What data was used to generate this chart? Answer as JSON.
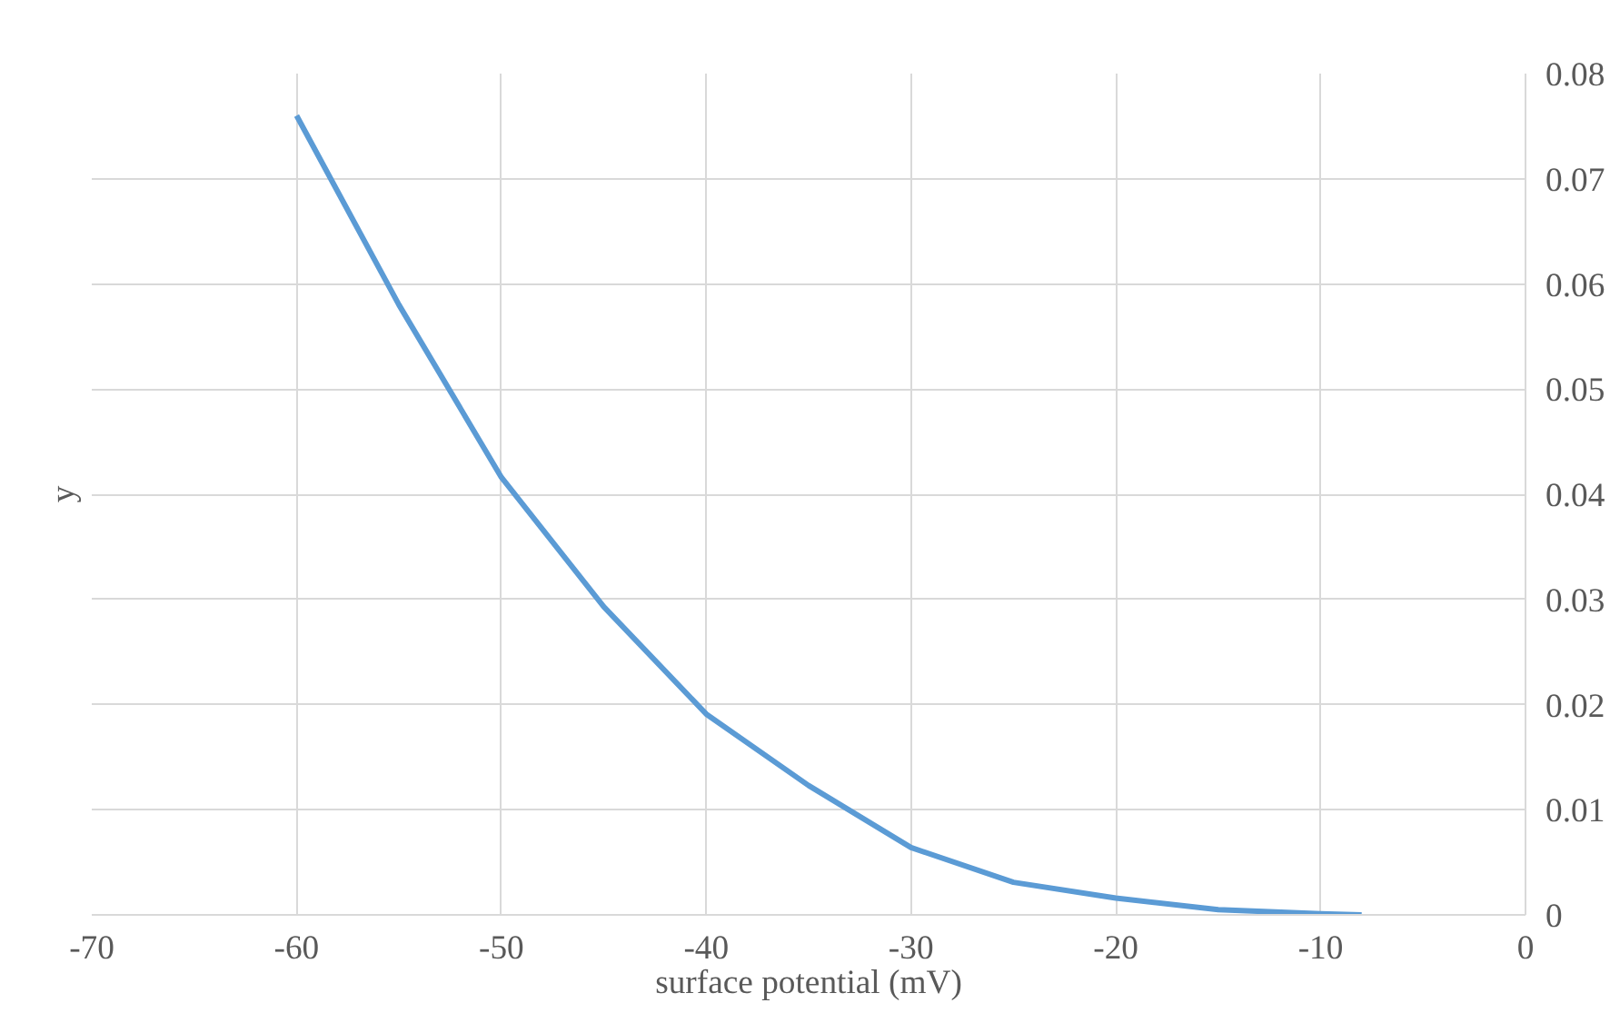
{
  "chart_data": {
    "type": "line",
    "xlabel": "surface potential (mV)",
    "ylabel": "y",
    "x": [
      -60,
      -55,
      -50,
      -45,
      -40,
      -35,
      -30,
      -25,
      -20,
      -15,
      -10,
      -8
    ],
    "series": [
      {
        "color": "#5b9bd5",
        "values": [
          0.076,
          0.058,
          0.0416,
          0.0293,
          0.0191,
          0.0123,
          0.0064,
          0.0031,
          0.0016,
          0.0005,
          0.0001,
          0.0
        ]
      }
    ],
    "xlim": [
      -70,
      0
    ],
    "xticks": [
      -70,
      -60,
      -50,
      -40,
      -30,
      -20,
      -10,
      0
    ],
    "ylim": [
      0,
      0.08
    ],
    "yticks": [
      0,
      0.01,
      0.02,
      0.03,
      0.04,
      0.05,
      0.06,
      0.07,
      0.08
    ],
    "grid": true,
    "marker": "none",
    "line_style": "solid"
  }
}
